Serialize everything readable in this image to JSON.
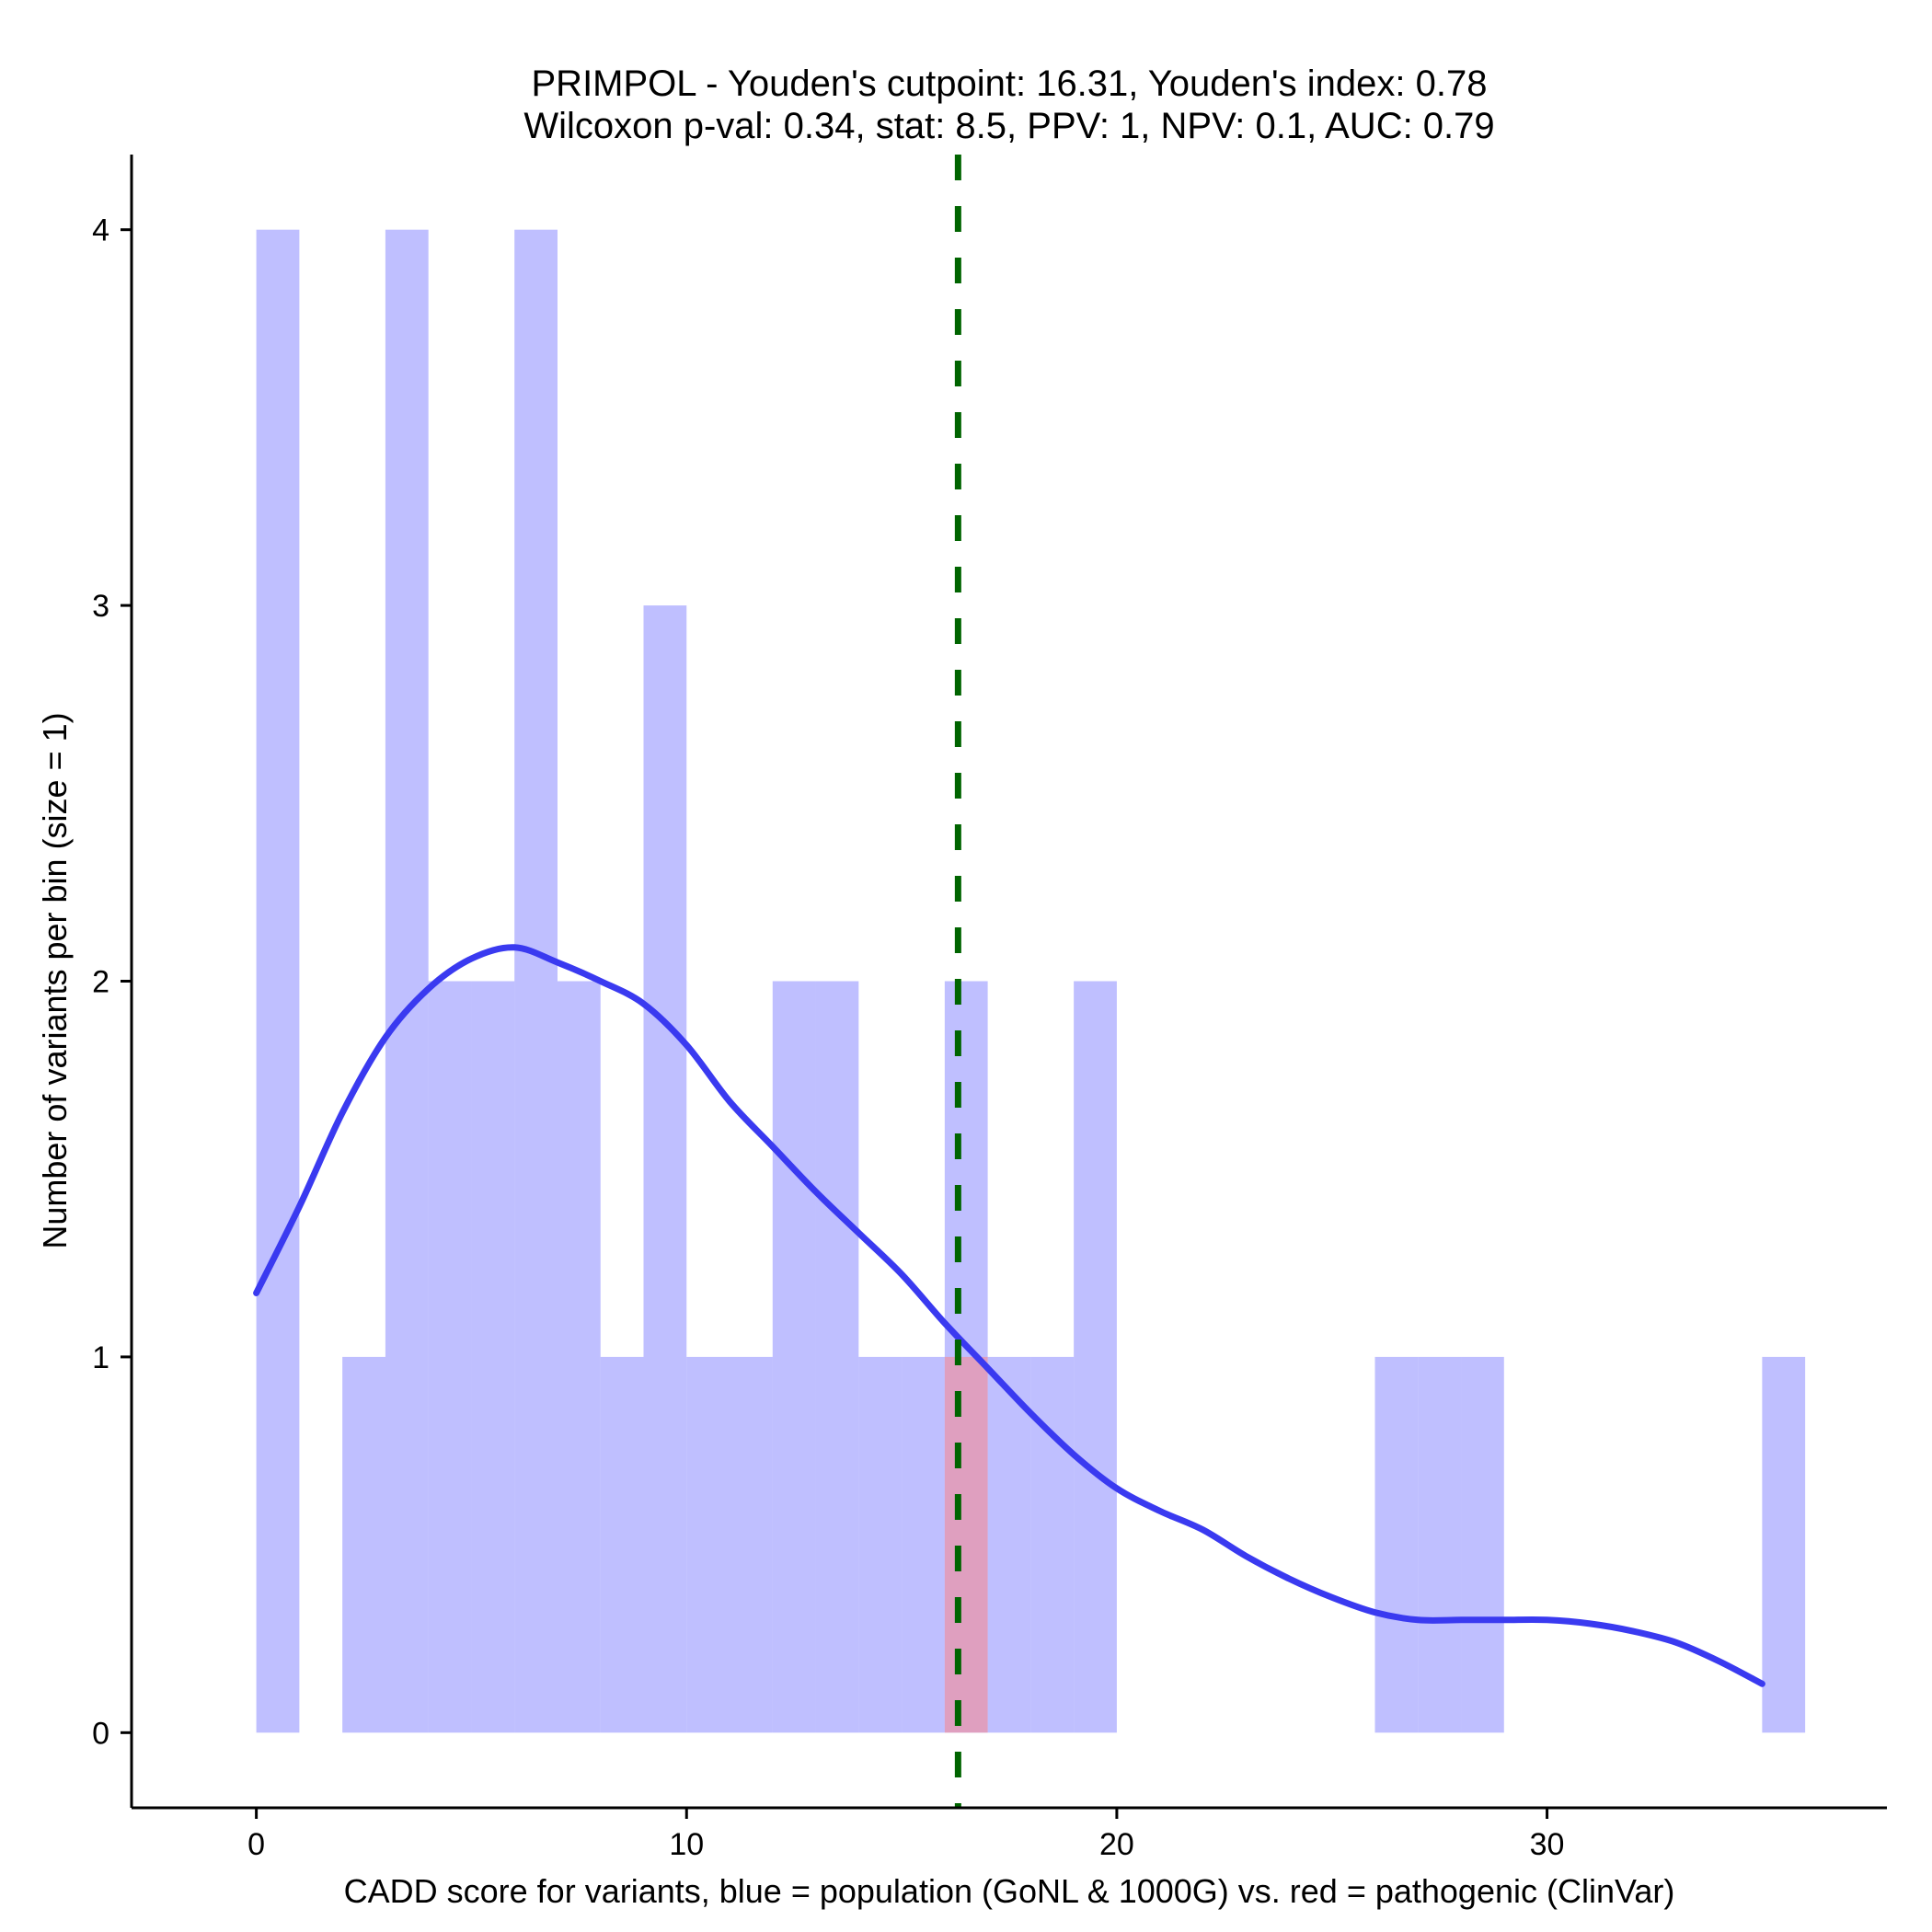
{
  "chart_data": {
    "type": "bar",
    "title": "PRIMPOL - Youden's cutpoint: 16.31, Youden's index: 0.78",
    "subtitle": "Wilcoxon p-val: 0.34, stat: 8.5, PPV: 1, NPV: 0.1, AUC: 0.79",
    "xlabel": "CADD score for variants, blue = population (GoNL & 1000G) vs. red = pathogenic (ClinVar)",
    "ylabel": "Number of variants per bin (size = 1)",
    "xlim": [
      -2.9,
      37.9
    ],
    "ylim": [
      -0.2,
      4.2
    ],
    "x_ticks": [
      0,
      10,
      20,
      30
    ],
    "y_ticks": [
      0,
      1,
      2,
      3,
      4
    ],
    "bin_width": 1,
    "grid": false,
    "legend": "none",
    "series": [
      {
        "color": "#8080ff",
        "opacity": 0.5,
        "bins": [
          {
            "x0": 0,
            "count": 4
          },
          {
            "x0": 2,
            "count": 1
          },
          {
            "x0": 3,
            "count": 4
          },
          {
            "x0": 4,
            "count": 2
          },
          {
            "x0": 5,
            "count": 2
          },
          {
            "x0": 6,
            "count": 4
          },
          {
            "x0": 7,
            "count": 2
          },
          {
            "x0": 8,
            "count": 1
          },
          {
            "x0": 9,
            "count": 3
          },
          {
            "x0": 10,
            "count": 1
          },
          {
            "x0": 11,
            "count": 1
          },
          {
            "x0": 12,
            "count": 2
          },
          {
            "x0": 13,
            "count": 2
          },
          {
            "x0": 14,
            "count": 1
          },
          {
            "x0": 15,
            "count": 1
          },
          {
            "x0": 16,
            "count": 2
          },
          {
            "x0": 17,
            "count": 1
          },
          {
            "x0": 18,
            "count": 1
          },
          {
            "x0": 19,
            "count": 2
          },
          {
            "x0": 26,
            "count": 1
          },
          {
            "x0": 27,
            "count": 1
          },
          {
            "x0": 28,
            "count": 1
          },
          {
            "x0": 35,
            "count": 1
          }
        ]
      },
      {
        "color": "#ff8080",
        "opacity": 0.5,
        "bins": [
          {
            "x0": 16,
            "count": 1
          }
        ]
      }
    ],
    "density_curve": {
      "color": "#3a3af0",
      "points": [
        [
          0,
          1.17
        ],
        [
          1,
          1.4
        ],
        [
          2,
          1.65
        ],
        [
          3,
          1.85
        ],
        [
          4,
          1.98
        ],
        [
          5,
          2.06
        ],
        [
          6,
          2.09
        ],
        [
          7,
          2.05
        ],
        [
          8,
          2.0
        ],
        [
          9,
          1.94
        ],
        [
          10,
          1.83
        ],
        [
          11,
          1.68
        ],
        [
          12,
          1.56
        ],
        [
          13,
          1.44
        ],
        [
          14,
          1.33
        ],
        [
          15,
          1.22
        ],
        [
          16,
          1.09
        ],
        [
          17,
          0.97
        ],
        [
          18,
          0.85
        ],
        [
          19,
          0.74
        ],
        [
          20,
          0.65
        ],
        [
          21,
          0.59
        ],
        [
          22,
          0.54
        ],
        [
          23,
          0.47
        ],
        [
          24,
          0.41
        ],
        [
          25,
          0.36
        ],
        [
          26,
          0.32
        ],
        [
          27,
          0.3
        ],
        [
          28,
          0.3
        ],
        [
          29,
          0.3
        ],
        [
          30,
          0.3
        ],
        [
          31,
          0.29
        ],
        [
          32,
          0.27
        ],
        [
          33,
          0.24
        ],
        [
          34,
          0.19
        ],
        [
          35,
          0.13
        ]
      ]
    },
    "cutpoint_line": {
      "x": 16.31,
      "color": "#006400",
      "style": "dashed"
    }
  }
}
